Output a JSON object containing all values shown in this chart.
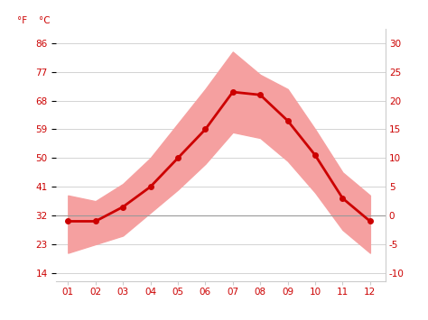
{
  "months": [
    1,
    2,
    3,
    4,
    5,
    6,
    7,
    8,
    9,
    10,
    11,
    12
  ],
  "month_labels": [
    "01",
    "02",
    "03",
    "04",
    "05",
    "06",
    "07",
    "08",
    "09",
    "10",
    "11",
    "12"
  ],
  "avg_temp_c": [
    -1.0,
    -1.0,
    1.5,
    5.0,
    10.0,
    15.0,
    21.5,
    21.0,
    16.5,
    10.5,
    3.0,
    -1.0
  ],
  "max_temp_c": [
    3.5,
    2.5,
    5.5,
    10.0,
    16.0,
    22.0,
    28.5,
    24.5,
    22.0,
    15.0,
    7.5,
    3.5
  ],
  "min_temp_c": [
    -6.5,
    -5.0,
    -3.5,
    0.5,
    4.5,
    9.0,
    14.5,
    13.5,
    9.5,
    4.0,
    -2.5,
    -6.5
  ],
  "yticks_c": [
    -10,
    -5,
    0,
    5,
    10,
    15,
    20,
    25,
    30
  ],
  "yticks_f": [
    14,
    23,
    32,
    41,
    50,
    59,
    68,
    77,
    86
  ],
  "ylim_c": [
    -11.5,
    32.5
  ],
  "xlim": [
    0.55,
    12.55
  ],
  "line_color": "#cc0000",
  "fill_color": "#f5a0a0",
  "zero_line_color": "#999999",
  "grid_color": "#cccccc",
  "axis_label_color": "#cc0000",
  "background_color": "#ffffff"
}
